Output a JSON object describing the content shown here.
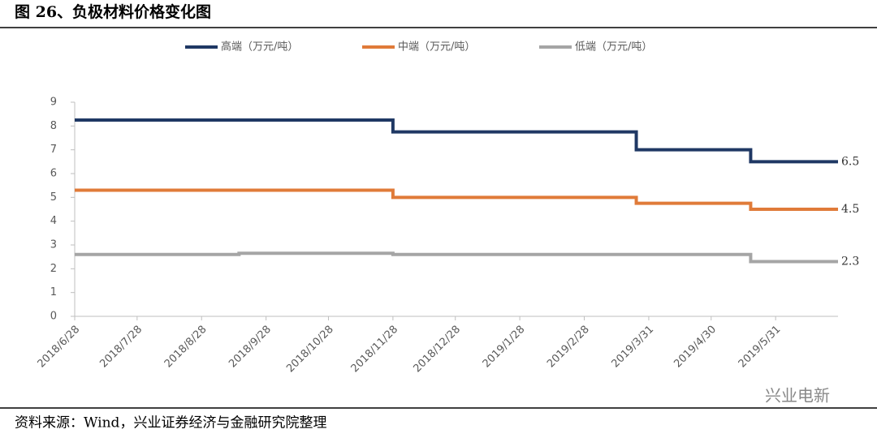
{
  "chart_data": {
    "type": "line",
    "step": "post",
    "title": "图 26、负极材料价格变化图",
    "source": "资料来源：Wind，兴业证券经济与金融研究院整理",
    "watermark": "兴业电新",
    "x": [
      "2018/6/28",
      "2018/9/15",
      "2018/11/28",
      "2019/3/25",
      "2019/5/19",
      "2019/6/30"
    ],
    "series": [
      {
        "name": "高端（万元/吨）",
        "color": "#1f3864",
        "values": [
          8.25,
          8.25,
          7.75,
          7.0,
          6.5,
          6.5
        ]
      },
      {
        "name": "中端（万元/吨）",
        "color": "#e07b39",
        "values": [
          5.3,
          5.3,
          5.0,
          4.75,
          4.5,
          4.5
        ]
      },
      {
        "name": "低端（万元/吨）",
        "color": "#a5a5a5",
        "values": [
          2.6,
          2.65,
          2.6,
          2.6,
          2.3,
          2.3
        ]
      }
    ],
    "end_labels": true,
    "xlim": [
      "2018/6/28",
      "2019/6/30"
    ],
    "xticks": [
      "2018/6/28",
      "2018/7/28",
      "2018/8/28",
      "2018/9/28",
      "2018/10/28",
      "2018/11/28",
      "2018/12/28",
      "2019/1/28",
      "2019/2/28",
      "2019/3/31",
      "2019/4/30",
      "2019/5/31"
    ],
    "ylim": [
      0,
      9
    ],
    "yticks": [
      0,
      1,
      2,
      3,
      4,
      5,
      6,
      7,
      8,
      9
    ],
    "grid": false,
    "legend": "top"
  }
}
